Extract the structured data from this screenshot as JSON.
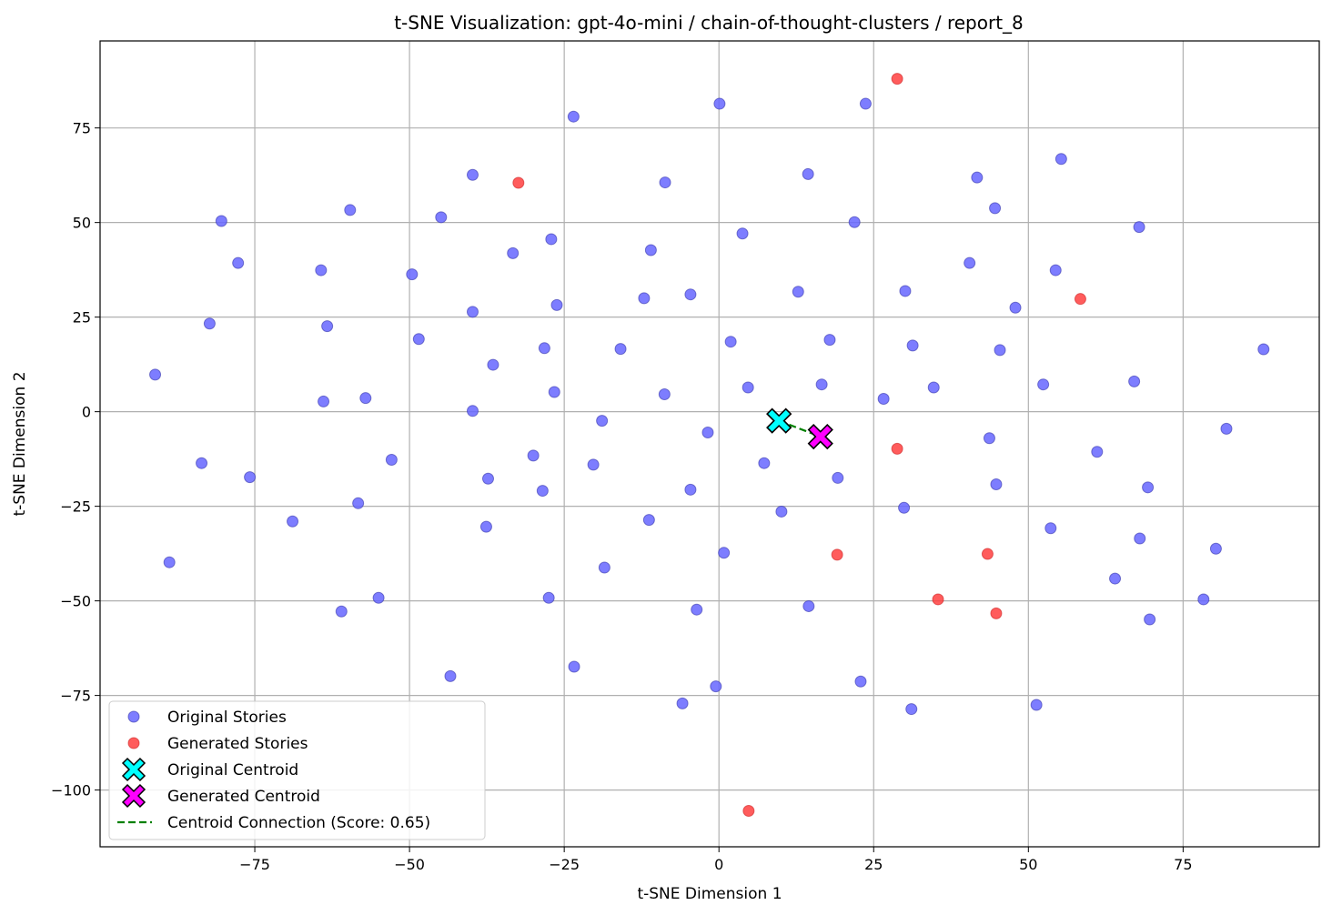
{
  "chart_data": {
    "type": "scatter",
    "title": "t-SNE Visualization: gpt-4o-mini / chain-of-thought-clusters / report_8",
    "xlabel": "t-SNE Dimension 1",
    "ylabel": "t-SNE Dimension 2",
    "xlim": [
      -100,
      97
    ],
    "ylim": [
      -115,
      98
    ],
    "xticks": [
      -75,
      -50,
      -25,
      0,
      25,
      50,
      75
    ],
    "xtick_labels": [
      "−75",
      "−50",
      "−25",
      "0",
      "25",
      "50",
      "75"
    ],
    "yticks": [
      -100,
      -75,
      -50,
      -25,
      0,
      25,
      50,
      75
    ],
    "ytick_labels": [
      "−100",
      "−75",
      "−50",
      "−25",
      "0",
      "25",
      "50",
      "75"
    ],
    "grid": true,
    "legend_position": "lower-left",
    "colors": {
      "original": "#6666ff",
      "generated": "#ff4040",
      "original_centroid": "#00ffff",
      "generated_centroid": "#ff00ff",
      "connection": "#008000"
    },
    "series": [
      {
        "name": "Original Stories",
        "points": [
          [
            -91.1,
            9.8
          ],
          [
            -88.8,
            -39.8
          ],
          [
            -83.6,
            -13.6
          ],
          [
            -82.3,
            23.3
          ],
          [
            -80.4,
            50.4
          ],
          [
            -77.7,
            39.3
          ],
          [
            -75.8,
            -17.3
          ],
          [
            -68.9,
            -29.0
          ],
          [
            -64.3,
            37.4
          ],
          [
            -63.9,
            2.7
          ],
          [
            -63.3,
            22.6
          ],
          [
            -61.0,
            -52.8
          ],
          [
            -59.6,
            53.3
          ],
          [
            -58.3,
            -24.2
          ],
          [
            -57.1,
            3.6
          ],
          [
            -55.0,
            -49.2
          ],
          [
            -52.9,
            -12.7
          ],
          [
            -49.6,
            36.3
          ],
          [
            -48.5,
            19.2
          ],
          [
            -44.9,
            51.4
          ],
          [
            -43.4,
            -69.9
          ],
          [
            -39.8,
            62.6
          ],
          [
            -39.8,
            26.4
          ],
          [
            -39.8,
            0.2
          ],
          [
            -37.6,
            -30.4
          ],
          [
            -37.3,
            -17.7
          ],
          [
            -36.5,
            12.4
          ],
          [
            -33.3,
            41.9
          ],
          [
            -30.0,
            -11.6
          ],
          [
            -28.5,
            -20.9
          ],
          [
            -28.2,
            16.8
          ],
          [
            -27.5,
            -49.2
          ],
          [
            -27.1,
            45.6
          ],
          [
            -26.6,
            5.2
          ],
          [
            -26.2,
            28.2
          ],
          [
            -23.5,
            78.0
          ],
          [
            -23.4,
            -67.4
          ],
          [
            -18.9,
            -2.4
          ],
          [
            -18.5,
            -41.2
          ],
          [
            -20.3,
            -14.0
          ],
          [
            -15.9,
            16.6
          ],
          [
            -12.1,
            30.0
          ],
          [
            -11.3,
            -28.6
          ],
          [
            -11.0,
            42.7
          ],
          [
            -8.7,
            60.6
          ],
          [
            -8.8,
            4.6
          ],
          [
            -4.6,
            31.0
          ],
          [
            -4.6,
            -20.6
          ],
          [
            -3.6,
            -52.3
          ],
          [
            -5.9,
            -77.1
          ],
          [
            -1.8,
            -5.5
          ],
          [
            -0.5,
            -72.6
          ],
          [
            0.1,
            81.4
          ],
          [
            0.8,
            -37.3
          ],
          [
            1.9,
            18.5
          ],
          [
            3.8,
            47.1
          ],
          [
            4.7,
            6.4
          ],
          [
            7.3,
            -13.6
          ],
          [
            10.1,
            -26.4
          ],
          [
            12.8,
            31.7
          ],
          [
            14.4,
            62.8
          ],
          [
            14.5,
            -51.4
          ],
          [
            16.6,
            7.2
          ],
          [
            17.9,
            19.0
          ],
          [
            19.2,
            -17.5
          ],
          [
            21.9,
            50.1
          ],
          [
            22.9,
            -71.3
          ],
          [
            23.7,
            81.4
          ],
          [
            26.6,
            3.4
          ],
          [
            29.9,
            -25.4
          ],
          [
            30.1,
            31.9
          ],
          [
            31.1,
            -78.6
          ],
          [
            31.3,
            17.5
          ],
          [
            34.7,
            6.4
          ],
          [
            40.5,
            39.3
          ],
          [
            41.7,
            61.9
          ],
          [
            43.7,
            -7.0
          ],
          [
            44.6,
            53.8
          ],
          [
            44.8,
            -19.2
          ],
          [
            45.4,
            16.3
          ],
          [
            47.9,
            27.5
          ],
          [
            51.3,
            -77.5
          ],
          [
            52.4,
            7.2
          ],
          [
            53.6,
            -30.8
          ],
          [
            54.4,
            37.4
          ],
          [
            55.3,
            66.8
          ],
          [
            61.1,
            -10.6
          ],
          [
            64.0,
            -44.1
          ],
          [
            67.1,
            8.0
          ],
          [
            67.9,
            48.8
          ],
          [
            68.0,
            -33.5
          ],
          [
            69.3,
            -20.0
          ],
          [
            69.6,
            -54.9
          ],
          [
            78.3,
            -49.6
          ],
          [
            80.3,
            -36.2
          ],
          [
            82.0,
            -4.5
          ],
          [
            88.0,
            16.5
          ]
        ]
      },
      {
        "name": "Generated Stories",
        "points": [
          [
            28.8,
            88.0
          ],
          [
            -32.4,
            60.5
          ],
          [
            58.4,
            29.8
          ],
          [
            28.8,
            -9.8
          ],
          [
            19.1,
            -37.8
          ],
          [
            43.4,
            -37.6
          ],
          [
            35.4,
            -49.6
          ],
          [
            44.8,
            -53.3
          ],
          [
            4.8,
            -105.5
          ]
        ]
      }
    ],
    "centroids": [
      {
        "name": "Original Centroid",
        "x": 9.7,
        "y": -2.4
      },
      {
        "name": "Generated Centroid",
        "x": 16.4,
        "y": -6.6
      }
    ],
    "connection": {
      "name": "Centroid Connection (Score: 0.65)",
      "from": [
        9.7,
        -2.4
      ],
      "to": [
        16.4,
        -6.6
      ]
    },
    "legend": [
      "Original Stories",
      "Generated Stories",
      "Original Centroid",
      "Generated Centroid",
      "Centroid Connection (Score: 0.65)"
    ]
  }
}
